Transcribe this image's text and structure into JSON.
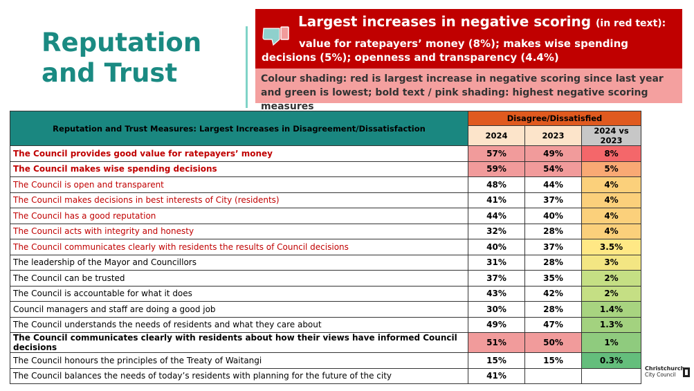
{
  "title": {
    "line1": "Reputation",
    "line2": "and Trust"
  },
  "callout": {
    "headline": "Largest increases in negative scoring",
    "headline_note": "(in red text):",
    "body_line1": "value for ratepayers’ money (8%); makes wise spending",
    "body_line2": "decisions (5%); openness and transparency (4.4%)",
    "icon": "thumbs-down-icon",
    "legend": "Colour shading: red is largest increase in negative scoring since last year and green is lowest; bold text / pink shading: highest negative scoring measures"
  },
  "table": {
    "measures_header": "Reputation and Trust Measures: Largest Increases in Disagreement/Dissatisfaction",
    "group_header": "Disagree/Dissatisfied",
    "col_2024": "2024",
    "col_2023": "2023",
    "col_diff": "2024 vs 2023",
    "rows": [
      {
        "label": "The Council provides good value for ratepayers’ money",
        "v2024": "57%",
        "v2023": "49%",
        "diff": "8%"
      },
      {
        "label": "The Council makes wise spending decisions",
        "v2024": "59%",
        "v2023": "54%",
        "diff": "5%"
      },
      {
        "label": "The Council is open and transparent",
        "v2024": "48%",
        "v2023": "44%",
        "diff": "4%"
      },
      {
        "label": "The Council makes decisions in best interests of City (residents)",
        "v2024": "41%",
        "v2023": "37%",
        "diff": "4%"
      },
      {
        "label": "The Council has a good reputation",
        "v2024": "44%",
        "v2023": "40%",
        "diff": "4%"
      },
      {
        "label": "The Council acts with integrity and honesty",
        "v2024": "32%",
        "v2023": "28%",
        "diff": "4%"
      },
      {
        "label": "The Council communicates clearly with residents the results of Council decisions",
        "v2024": "40%",
        "v2023": "37%",
        "diff": "3.5%"
      },
      {
        "label": "The leadership of the Mayor and Councillors",
        "v2024": "31%",
        "v2023": "28%",
        "diff": "3%"
      },
      {
        "label": "The Council can be trusted",
        "v2024": "37%",
        "v2023": "35%",
        "diff": "2%"
      },
      {
        "label": "The Council is accountable for what it does",
        "v2024": "43%",
        "v2023": "42%",
        "diff": "2%"
      },
      {
        "label": "Council managers and staff are doing a good job",
        "v2024": "30%",
        "v2023": "28%",
        "diff": "1.4%"
      },
      {
        "label": "The Council understands the needs of residents and what they care about",
        "v2024": "49%",
        "v2023": "47%",
        "diff": "1.3%"
      },
      {
        "label": "The Council communicates clearly with residents about how their views have informed Council decisions",
        "v2024": "51%",
        "v2023": "50%",
        "diff": "1%"
      },
      {
        "label": "The Council honours the principles of the Treaty of Waitangi",
        "v2024": "15%",
        "v2023": "15%",
        "diff": "0.3%"
      },
      {
        "label": "The Council balances the needs of today’s residents with planning for the future of the city",
        "v2024": "41%",
        "v2023": "",
        "diff": ""
      }
    ]
  },
  "colors": {
    "title": "#1a8a82",
    "red_box": "#c00000",
    "pink_box": "#f4a09f",
    "teal_header": "#1a8780",
    "orange_header": "#e05a1f"
  },
  "logo": {
    "line1": "Christchurch",
    "line2": "City Council"
  }
}
